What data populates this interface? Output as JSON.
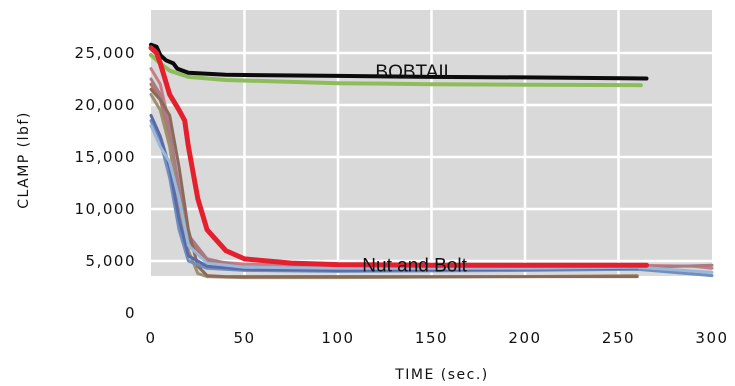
{
  "chart_data": {
    "type": "line",
    "xlabel": "TIME (sec.)",
    "ylabel": "CLAMP (lbf)",
    "xlim": [
      0,
      300
    ],
    "ylim": [
      0,
      28000
    ],
    "x_ticks": [
      "0",
      "50",
      "100",
      "150",
      "200",
      "250",
      "300"
    ],
    "y_ticks": [
      {
        "value": 0,
        "label": "0"
      },
      {
        "value": 5000,
        "label": "5,000"
      },
      {
        "value": 10000,
        "label": "10,000"
      },
      {
        "value": 15000,
        "label": "15,000"
      },
      {
        "value": 20000,
        "label": "20,000"
      },
      {
        "value": 25000,
        "label": "25,000"
      }
    ],
    "grid": true,
    "plot_background": "#d9d9d9",
    "annotations": [
      {
        "text": "BOBTAIL",
        "x": 120,
        "y": 22600
      },
      {
        "text": "Nut and Bolt",
        "x": 113,
        "y": 4000
      }
    ],
    "series": [
      {
        "color": "#8dbd5a",
        "width": 4,
        "values": [
          [
            0,
            24800
          ],
          [
            5,
            24000
          ],
          [
            10,
            23300
          ],
          [
            20,
            22700
          ],
          [
            40,
            22400
          ],
          [
            100,
            22100
          ],
          [
            150,
            22000
          ],
          [
            200,
            21950
          ],
          [
            262,
            21900
          ]
        ]
      },
      {
        "color": "#0b0b0b",
        "width": 4,
        "values": [
          [
            0,
            25800
          ],
          [
            3,
            25600
          ],
          [
            5,
            24800
          ],
          [
            8,
            24300
          ],
          [
            12,
            24000
          ],
          [
            14,
            23500
          ],
          [
            20,
            23100
          ],
          [
            40,
            22900
          ],
          [
            100,
            22800
          ],
          [
            150,
            22700
          ],
          [
            200,
            22650
          ],
          [
            265,
            22550
          ]
        ]
      },
      {
        "color": "#c97c86",
        "width": 3,
        "values": [
          [
            0,
            23500
          ],
          [
            5,
            22000
          ],
          [
            10,
            18000
          ],
          [
            15,
            10000
          ],
          [
            20,
            6500
          ],
          [
            30,
            5000
          ],
          [
            50,
            4700
          ],
          [
            100,
            4500
          ],
          [
            200,
            4500
          ],
          [
            260,
            4600
          ],
          [
            290,
            4500
          ],
          [
            300,
            4300
          ]
        ]
      },
      {
        "color": "#b07468",
        "width": 3,
        "values": [
          [
            0,
            22000
          ],
          [
            5,
            20500
          ],
          [
            10,
            17000
          ],
          [
            15,
            11000
          ],
          [
            20,
            7000
          ],
          [
            30,
            5000
          ],
          [
            50,
            4200
          ],
          [
            100,
            4100
          ],
          [
            200,
            4200
          ],
          [
            260,
            4200
          ]
        ]
      },
      {
        "color": "#a97b84",
        "width": 3,
        "values": [
          [
            0,
            22500
          ],
          [
            5,
            21000
          ],
          [
            10,
            17500
          ],
          [
            15,
            12000
          ],
          [
            20,
            7500
          ],
          [
            30,
            5200
          ],
          [
            50,
            4400
          ],
          [
            100,
            4300
          ],
          [
            200,
            4300
          ],
          [
            265,
            4400
          ],
          [
            300,
            4600
          ]
        ]
      },
      {
        "color": "#9e8f6f",
        "width": 3,
        "values": [
          [
            0,
            21000
          ],
          [
            5,
            19500
          ],
          [
            10,
            16000
          ],
          [
            15,
            10000
          ],
          [
            20,
            6000
          ],
          [
            25,
            3800
          ],
          [
            30,
            3500
          ],
          [
            50,
            3400
          ],
          [
            100,
            3400
          ],
          [
            200,
            3500
          ],
          [
            260,
            3600
          ]
        ]
      },
      {
        "color": "#8a6b5b",
        "width": 3,
        "values": [
          [
            0,
            21500
          ],
          [
            5,
            20500
          ],
          [
            10,
            19000
          ],
          [
            15,
            14000
          ],
          [
            20,
            8000
          ],
          [
            25,
            4500
          ],
          [
            30,
            3600
          ],
          [
            40,
            3500
          ],
          [
            100,
            3500
          ],
          [
            200,
            3500
          ],
          [
            260,
            3500
          ]
        ]
      },
      {
        "color": "#6f8fbe",
        "width": 3,
        "values": [
          [
            0,
            18500
          ],
          [
            5,
            16500
          ],
          [
            10,
            13000
          ],
          [
            15,
            8000
          ],
          [
            20,
            5000
          ],
          [
            30,
            4300
          ],
          [
            50,
            4100
          ],
          [
            100,
            4000
          ],
          [
            200,
            4100
          ],
          [
            260,
            4200
          ],
          [
            300,
            3600
          ]
        ]
      },
      {
        "color": "#5a6aa8",
        "width": 3,
        "values": [
          [
            0,
            19000
          ],
          [
            5,
            17000
          ],
          [
            10,
            14000
          ],
          [
            15,
            9000
          ],
          [
            20,
            5500
          ],
          [
            30,
            4500
          ],
          [
            50,
            4200
          ],
          [
            100,
            4100
          ],
          [
            200,
            4200
          ],
          [
            260,
            4300
          ]
        ]
      },
      {
        "color": "#9cb7d8",
        "width": 3,
        "values": [
          [
            0,
            18000
          ],
          [
            5,
            16000
          ],
          [
            10,
            14500
          ],
          [
            15,
            11000
          ],
          [
            20,
            6500
          ],
          [
            30,
            4800
          ],
          [
            50,
            4400
          ],
          [
            100,
            4300
          ],
          [
            200,
            4300
          ],
          [
            260,
            4400
          ],
          [
            300,
            3900
          ]
        ]
      },
      {
        "color": "#e5202e",
        "width": 5,
        "values": [
          [
            0,
            25500
          ],
          [
            3,
            25000
          ],
          [
            5,
            24000
          ],
          [
            10,
            21000
          ],
          [
            15,
            19500
          ],
          [
            18,
            18500
          ],
          [
            20,
            16000
          ],
          [
            25,
            11000
          ],
          [
            30,
            8000
          ],
          [
            40,
            6000
          ],
          [
            50,
            5200
          ],
          [
            75,
            4800
          ],
          [
            100,
            4650
          ],
          [
            150,
            4600
          ],
          [
            200,
            4600
          ],
          [
            265,
            4600
          ]
        ]
      }
    ]
  }
}
